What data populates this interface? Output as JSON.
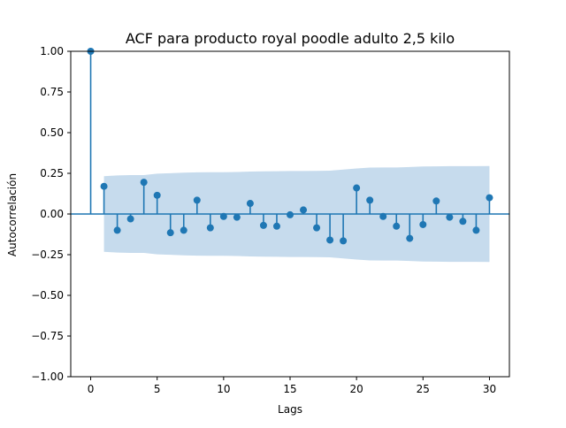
{
  "chart_data": {
    "type": "scatter",
    "title": "ACF para producto royal poodle  adulto 2,5 kilo",
    "xlabel": "Lags",
    "ylabel": "Autocorrelación",
    "xlim": [
      -1.5,
      31.5
    ],
    "ylim": [
      -1.0,
      1.0
    ],
    "xticks": [
      0,
      5,
      10,
      15,
      20,
      25,
      30
    ],
    "xtick_labels": [
      "0",
      "5",
      "10",
      "15",
      "20",
      "25",
      "30"
    ],
    "yticks": [
      -1.0,
      -0.75,
      -0.5,
      -0.25,
      0.0,
      0.25,
      0.5,
      0.75,
      1.0
    ],
    "ytick_labels": [
      "−1.00",
      "−0.75",
      "−0.50",
      "−0.25",
      "0.00",
      "0.25",
      "0.50",
      "0.75",
      "1.00"
    ],
    "grid": false,
    "legend": "none",
    "colors": {
      "stem": "#1f77b4",
      "marker": "#1f77b4",
      "confidence_band": "#c6dbed",
      "axes": "#000000"
    },
    "lags": [
      0,
      1,
      2,
      3,
      4,
      5,
      6,
      7,
      8,
      9,
      10,
      11,
      12,
      13,
      14,
      15,
      16,
      17,
      18,
      19,
      20,
      21,
      22,
      23,
      24,
      25,
      26,
      27,
      28,
      29,
      30
    ],
    "acf": [
      1.0,
      0.17,
      -0.1,
      -0.03,
      0.195,
      0.115,
      -0.115,
      -0.1,
      0.085,
      -0.085,
      -0.015,
      -0.02,
      0.065,
      -0.07,
      -0.075,
      -0.005,
      0.025,
      -0.085,
      -0.16,
      -0.165,
      0.16,
      0.085,
      -0.015,
      -0.075,
      -0.15,
      -0.065,
      0.08,
      -0.02,
      -0.045,
      -0.1,
      0.1
    ],
    "confidence_band": {
      "lags": [
        1,
        2,
        3,
        4,
        5,
        6,
        7,
        8,
        9,
        10,
        11,
        12,
        13,
        14,
        15,
        16,
        17,
        18,
        19,
        20,
        21,
        22,
        23,
        24,
        25,
        26,
        27,
        28,
        29,
        30
      ],
      "upper": [
        0.232,
        0.237,
        0.239,
        0.239,
        0.248,
        0.251,
        0.254,
        0.256,
        0.257,
        0.257,
        0.258,
        0.261,
        0.262,
        0.263,
        0.264,
        0.264,
        0.265,
        0.266,
        0.273,
        0.28,
        0.285,
        0.286,
        0.286,
        0.289,
        0.292,
        0.293,
        0.294,
        0.294,
        0.294,
        0.295
      ],
      "lower": [
        -0.232,
        -0.237,
        -0.239,
        -0.239,
        -0.248,
        -0.251,
        -0.254,
        -0.256,
        -0.257,
        -0.257,
        -0.258,
        -0.261,
        -0.262,
        -0.263,
        -0.264,
        -0.264,
        -0.265,
        -0.266,
        -0.273,
        -0.28,
        -0.285,
        -0.286,
        -0.286,
        -0.289,
        -0.292,
        -0.293,
        -0.294,
        -0.294,
        -0.294,
        -0.295
      ]
    }
  }
}
